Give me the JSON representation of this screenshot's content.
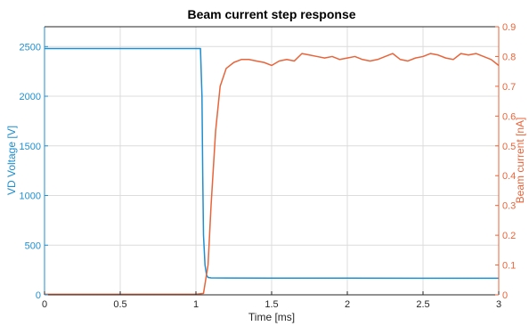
{
  "chart_data": {
    "type": "line",
    "title": "Beam current step response",
    "xlabel": "Time [ms]",
    "ylabel_left": "VD Voltage [V]",
    "ylabel_right": "Beam current [nA]",
    "xlim": [
      0,
      3
    ],
    "ylim_left": [
      0,
      2700
    ],
    "ylim_right": [
      0,
      0.9
    ],
    "x_ticks": [
      "0",
      "0.5",
      "1",
      "1.5",
      "2",
      "2.5",
      "3"
    ],
    "y_left_ticks": [
      "0",
      "500",
      "1000",
      "1500",
      "2000",
      "2500"
    ],
    "y_right_ticks": [
      "0",
      "0.1",
      "0.2",
      "0.3",
      "0.4",
      "0.5",
      "0.6",
      "0.7",
      "0.8",
      "0.9"
    ],
    "grid": true,
    "colors": {
      "left": "#1f8fd0",
      "right": "#e8643a"
    },
    "series": [
      {
        "axis": "left",
        "x": [
          0,
          0.5,
          1.0,
          1.03,
          1.04,
          1.045,
          1.05,
          1.06,
          1.07,
          1.08,
          1.1,
          1.5,
          2.0,
          2.5,
          3.0
        ],
        "values": [
          2480,
          2480,
          2480,
          2480,
          2000,
          1200,
          600,
          300,
          200,
          175,
          170,
          168,
          168,
          167,
          167
        ]
      },
      {
        "axis": "right",
        "x": [
          0,
          0.5,
          1.0,
          1.05,
          1.08,
          1.1,
          1.13,
          1.16,
          1.2,
          1.25,
          1.3,
          1.35,
          1.4,
          1.45,
          1.5,
          1.55,
          1.6,
          1.65,
          1.7,
          1.75,
          1.8,
          1.85,
          1.9,
          1.95,
          2.0,
          2.05,
          2.1,
          2.15,
          2.2,
          2.25,
          2.3,
          2.35,
          2.4,
          2.45,
          2.5,
          2.55,
          2.6,
          2.65,
          2.7,
          2.75,
          2.8,
          2.85,
          2.9,
          2.95,
          3.0
        ],
        "values": [
          0.002,
          0.002,
          0.002,
          0.005,
          0.1,
          0.3,
          0.55,
          0.7,
          0.76,
          0.78,
          0.79,
          0.79,
          0.785,
          0.78,
          0.77,
          0.785,
          0.79,
          0.785,
          0.81,
          0.805,
          0.8,
          0.795,
          0.8,
          0.79,
          0.795,
          0.8,
          0.79,
          0.785,
          0.79,
          0.8,
          0.81,
          0.79,
          0.785,
          0.795,
          0.8,
          0.81,
          0.805,
          0.795,
          0.79,
          0.81,
          0.805,
          0.81,
          0.8,
          0.79,
          0.77
        ]
      }
    ]
  }
}
